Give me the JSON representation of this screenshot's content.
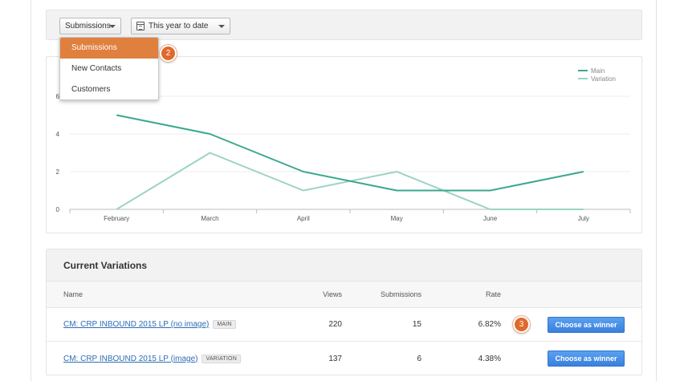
{
  "filters": {
    "metric_selected": "Submissions",
    "date_selected": "This year to date"
  },
  "metric_dropdown": {
    "options": [
      "Submissions",
      "New Contacts",
      "Customers"
    ],
    "active_index": 0
  },
  "step_badges": {
    "dropdown": "2",
    "winner": "3"
  },
  "chart_data": {
    "type": "line",
    "categories": [
      "February",
      "March",
      "April",
      "May",
      "June",
      "July"
    ],
    "series": [
      {
        "name": "Main",
        "values": [
          5,
          4,
          2,
          1,
          1,
          2
        ],
        "color": "#3aa88e"
      },
      {
        "name": "Variation",
        "values": [
          0,
          3,
          1,
          2,
          0,
          0
        ],
        "color": "#9bd3c6"
      }
    ],
    "yticks": [
      "0",
      "2",
      "4",
      "6"
    ],
    "ylim": [
      0,
      6
    ],
    "grid": true,
    "legend_position": "top-right"
  },
  "variations": {
    "title": "Current Variations",
    "columns": {
      "name": "Name",
      "views": "Views",
      "submissions": "Submissions",
      "rate": "Rate"
    },
    "rows": [
      {
        "name": "CM: CRP INBOUND 2015 LP (no image)",
        "tag": "MAIN",
        "views": "220",
        "submissions": "15",
        "rate": "6.82%",
        "button": "Choose as winner"
      },
      {
        "name": "CM: CRP INBOUND 2015 LP (image)",
        "tag": "VARIATION",
        "views": "137",
        "submissions": "6",
        "rate": "4.38%",
        "button": "Choose as winner"
      }
    ]
  }
}
